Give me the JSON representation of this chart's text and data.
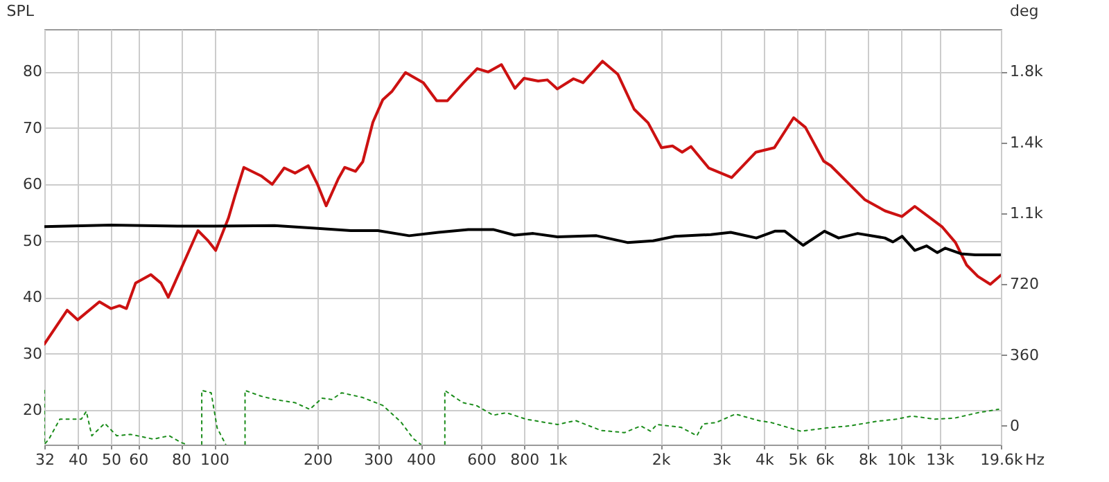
{
  "chart_data": {
    "type": "line",
    "xlabel": "Hz",
    "ylabel": "SPL",
    "y2label": "deg",
    "log": "x",
    "grid": true,
    "xlim": [
      32,
      19600
    ],
    "xticks": [
      32,
      40,
      50,
      60,
      80,
      100,
      200,
      300,
      400,
      600,
      800,
      {
        "value": 1000,
        "label": "1k"
      },
      {
        "value": 2000,
        "label": "2k"
      },
      {
        "value": 3000,
        "label": "3k"
      },
      {
        "value": 4000,
        "label": "4k"
      },
      {
        "value": 5000,
        "label": "5k"
      },
      {
        "value": 6000,
        "label": "6k"
      },
      {
        "value": 8000,
        "label": "8k"
      },
      {
        "value": 10000,
        "label": "10k"
      },
      {
        "value": 13000,
        "label": "13k"
      },
      {
        "value": 19600,
        "label": "19.6k"
      }
    ],
    "ylim": [
      13.9,
      87.5
    ],
    "yticks": [
      20,
      30,
      40,
      50,
      60,
      70,
      80
    ],
    "y2lim": [
      -95,
      2015
    ],
    "y2ticks": [
      0,
      360,
      720,
      {
        "value": 1080,
        "label": "1.1k"
      },
      {
        "value": 1440,
        "label": "1.4k"
      },
      {
        "value": 1800,
        "label": "1.8k"
      }
    ],
    "series": [
      {
        "color": "#cc1111",
        "line_style": "solid",
        "x": [
          32,
          37.3,
          40,
          46.3,
          50,
          53,
          55.5,
          59,
          65.4,
          70,
          73.5,
          80,
          89.7,
          96,
          101,
          110,
          115,
          122,
          137,
          147.6,
          160,
          172,
          188,
          200,
          212,
          230,
          240,
          258,
          271,
          290,
          310,
          330,
          361,
          407,
          445,
          478,
          533,
          584,
          628,
          687,
          752,
          800,
          879,
          935,
          1000,
          1114,
          1188,
          1354,
          1500,
          1674,
          1838,
          2010,
          2165,
          2310,
          2450,
          2760,
          3220,
          3790,
          4290,
          4880,
          5280,
          5970,
          6260,
          7070,
          7860,
          9010,
          10090,
          11000,
          12050,
          13200,
          14450,
          15580,
          16800,
          18260,
          19600
        ],
        "values": [
          31.7,
          37.7,
          36,
          39.2,
          38,
          38.5,
          38,
          42.5,
          44,
          42.5,
          40,
          45,
          51.8,
          50,
          48.3,
          54,
          58,
          63,
          61.5,
          60,
          62.9,
          62,
          63.3,
          60,
          56.2,
          61,
          63,
          62.3,
          64,
          71,
          75,
          76.5,
          79.8,
          78,
          74.8,
          74.8,
          78,
          80.5,
          79.9,
          81.2,
          77,
          78.8,
          78.3,
          78.5,
          76.9,
          78.7,
          78,
          81.8,
          79.5,
          73.3,
          70.9,
          66.5,
          66.8,
          65.7,
          66.7,
          62.9,
          61.2,
          65.7,
          66.5,
          71.8,
          70.1,
          64.1,
          63.3,
          60.1,
          57.3,
          55.3,
          54.3,
          56.1,
          54.3,
          52.5,
          49.7,
          45.7,
          43.7,
          42.3,
          43.9
        ]
      },
      {
        "color": "#000000",
        "line_style": "solid",
        "x": [
          32,
          50,
          80,
          100,
          150,
          200,
          250,
          300,
          370,
          450,
          550,
          650,
          750,
          850,
          1000,
          1300,
          1600,
          1900,
          2200,
          2800,
          3200,
          3800,
          4300,
          4600,
          5200,
          6000,
          6600,
          7500,
          9000,
          9500,
          10100,
          11000,
          11900,
          12800,
          13500,
          15000,
          16500,
          19600
        ],
        "values": [
          52.5,
          52.8,
          52.6,
          52.6,
          52.7,
          52.2,
          51.8,
          51.8,
          50.9,
          51.5,
          52,
          52,
          51,
          51.3,
          50.7,
          50.9,
          49.7,
          50,
          50.8,
          51.1,
          51.5,
          50.5,
          51.7,
          51.7,
          49.2,
          51.7,
          50.5,
          51.3,
          50.5,
          49.8,
          50.8,
          48.3,
          49.1,
          47.9,
          48.7,
          47.7,
          47.5,
          47.5
        ]
      },
      {
        "color": "#1a8c1a",
        "line_style": "dotted",
        "axis": "y2",
        "x": [
          32,
          32,
          33,
          35.5,
          41,
          42.4,
          44,
          48,
          52,
          57,
          66.5,
          74,
          80,
          83,
          88,
          92,
          92,
          98,
          102,
          108,
          115,
          123,
          123,
          137,
          150,
          172,
          190,
          206,
          220,
          235,
          270,
          310,
          350,
          380,
          400,
          440,
          470,
          470,
          530,
          580,
          650,
          710,
          810,
          1000,
          1130,
          1340,
          1570,
          1750,
          1870,
          1950,
          2290,
          2550,
          2660,
          2900,
          3300,
          3860,
          4200,
          5120,
          6100,
          7100,
          8500,
          9700,
          10800,
          12600,
          14400,
          16800,
          19300
        ],
        "values": [
          180,
          -94,
          -67,
          34,
          34,
          74,
          -50,
          13,
          -50,
          -43,
          -67,
          -50,
          -84,
          -94,
          null,
          -94,
          180,
          168,
          -10,
          -94,
          null,
          -94,
          180,
          151,
          134,
          118,
          84,
          141,
          134,
          168,
          145,
          104,
          20,
          -64,
          -94,
          null,
          -94,
          180,
          118,
          104,
          54,
          67,
          34,
          7,
          27,
          -23,
          -34,
          0,
          -27,
          7,
          -7,
          -50,
          10,
          17,
          60,
          27,
          17,
          -27,
          -10,
          0,
          23,
          34,
          50,
          34,
          40,
          67,
          84
        ]
      }
    ]
  }
}
